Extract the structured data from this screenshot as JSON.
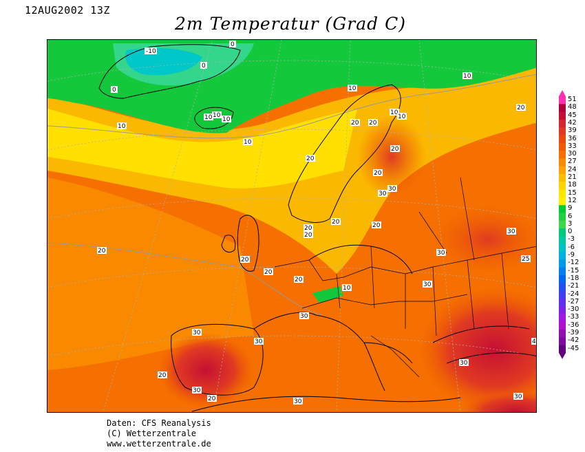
{
  "header": {
    "date": "12AUG2002 13Z",
    "title": "2m Temperatur (Grad C)"
  },
  "legend": {
    "values": [
      "51",
      "48",
      "45",
      "42",
      "39",
      "36",
      "33",
      "30",
      "27",
      "24",
      "21",
      "18",
      "15",
      "12",
      "9",
      "6",
      "3",
      "0",
      "-3",
      "-6",
      "-9",
      "-12",
      "-15",
      "-18",
      "-21",
      "-24",
      "-27",
      "-30",
      "-33",
      "-36",
      "-39",
      "-42",
      "-45"
    ],
    "colors": [
      "#ff2fb3",
      "#b0003c",
      "#c51033",
      "#d52633",
      "#e03a22",
      "#ea4a10",
      "#f05a00",
      "#f57000",
      "#f98a00",
      "#fba300",
      "#fdbd00",
      "#ffd400",
      "#ffe600",
      "#fff000",
      "#00cc33",
      "#20d040",
      "#40d64a",
      "#00c97a",
      "#00c8a0",
      "#00c0c8",
      "#00b0e0",
      "#0098e8",
      "#0080ee",
      "#0068f0",
      "#2050f0",
      "#4040f0",
      "#6030f0",
      "#8020e8",
      "#a018e0",
      "#b010d0",
      "#9010b0",
      "#800aa0",
      "#600080"
    ]
  },
  "map": {
    "contour_labels": [
      "-10",
      "0",
      "0",
      "0",
      "10",
      "10",
      "10",
      "10",
      "10",
      "10",
      "10",
      "10",
      "10",
      "10",
      "20",
      "20",
      "20",
      "20",
      "20",
      "20",
      "20",
      "20",
      "20",
      "20",
      "20",
      "20",
      "20",
      "20",
      "20",
      "20",
      "30",
      "30",
      "30",
      "30",
      "30",
      "30",
      "30",
      "30",
      "30",
      "30",
      "30",
      "30",
      "4",
      "25"
    ]
  },
  "footer": {
    "line1": "Daten: CFS Reanalysis",
    "line2": "(C) Wetterzentrale",
    "line3": "www.wetterzentrale.de"
  }
}
